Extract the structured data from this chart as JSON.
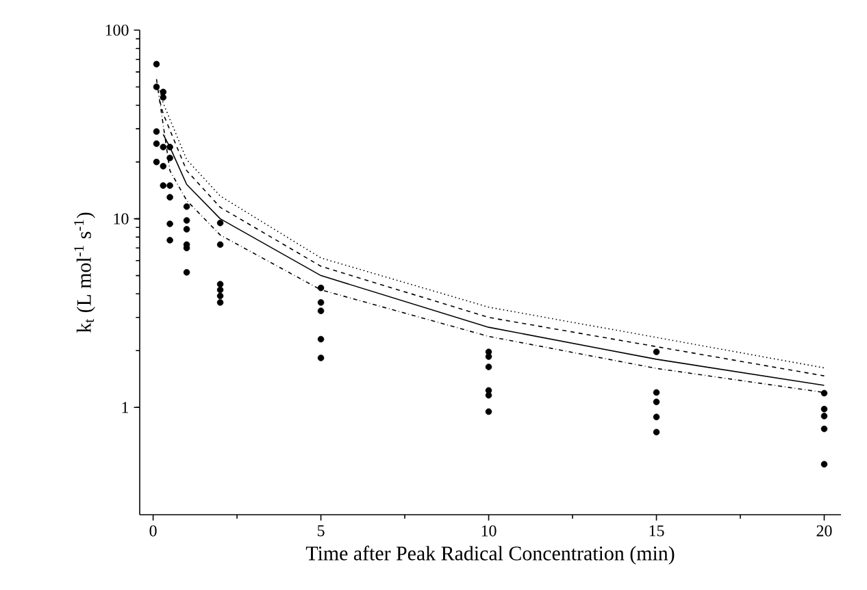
{
  "chart_data": {
    "type": "line",
    "xlabel": "Time after Peak Radical Concentration  (min)",
    "ylabel": "k$_{t}$ (L mol$^{-1}$ s$^{-1}$)",
    "log": "y",
    "xlim": [
      -0.4,
      20.5
    ],
    "ylim": [
      0.27,
      100
    ],
    "xticks": [
      0,
      5,
      10,
      15,
      20
    ],
    "yticks": [
      1,
      10,
      100
    ],
    "series": [
      {
        "type": "scatter",
        "color": "#000000",
        "marker": "circle",
        "x": [
          0.1,
          0.1,
          0.1,
          0.1,
          0.1,
          0.3,
          0.3,
          0.3,
          0.3,
          0.3,
          0.5,
          0.5,
          0.5,
          0.5,
          0.5,
          0.5,
          1,
          1,
          1,
          1,
          1,
          1,
          2,
          2,
          2,
          2,
          2,
          2,
          5,
          5,
          5,
          5,
          5,
          10,
          10,
          10,
          10,
          10,
          10,
          15,
          15,
          15,
          15,
          15,
          20,
          20,
          20,
          20,
          20
        ],
        "values": [
          66,
          50,
          29,
          25,
          20,
          47,
          44,
          24,
          19,
          15,
          24,
          21,
          15,
          13,
          9.4,
          7.7,
          11.6,
          9.8,
          8.8,
          7.3,
          7.0,
          5.2,
          9.5,
          7.3,
          4.5,
          4.2,
          3.9,
          3.6,
          4.3,
          3.6,
          3.25,
          2.3,
          1.83,
          1.97,
          1.86,
          1.64,
          1.23,
          1.16,
          0.95,
          1.97,
          1.2,
          1.07,
          0.89,
          0.74,
          1.19,
          0.98,
          0.9,
          0.77,
          0.5
        ]
      },
      {
        "color": "#000000",
        "line_style": "solid",
        "x": [
          0.3,
          0.5,
          1,
          2,
          5,
          10,
          15,
          20
        ],
        "values": [
          28,
          24,
          15.2,
          10,
          5.0,
          2.66,
          1.8,
          1.31
        ]
      },
      {
        "color": "#000000",
        "line_style": "dashed",
        "x": [
          0.2,
          0.3,
          1,
          2,
          5,
          10,
          15,
          20
        ],
        "values": [
          42,
          36,
          18,
          11.5,
          5.6,
          3.0,
          2.1,
          1.47
        ]
      },
      {
        "color": "#000000",
        "line_style": "dotted",
        "x": [
          0.2,
          0.3,
          1,
          2,
          5,
          10,
          15,
          20
        ],
        "values": [
          48,
          41,
          20.6,
          13.2,
          6.2,
          3.4,
          2.35,
          1.62
        ]
      },
      {
        "color": "#000000",
        "line_style": "dashdotted",
        "x": [
          0.1,
          0.5,
          1,
          2,
          5,
          10,
          15,
          20
        ],
        "values": [
          55,
          18,
          12.5,
          8.2,
          4.2,
          2.38,
          1.61,
          1.2
        ]
      }
    ]
  }
}
